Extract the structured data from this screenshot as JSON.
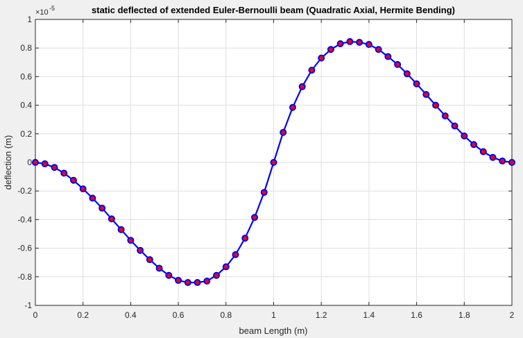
{
  "window": {
    "background": "#f0f0f0"
  },
  "chart_data": {
    "type": "line",
    "title": "static deflected of extended Euler-Bernoulli beam (Quadratic Axial, Hermite Bending)",
    "xlabel": "beam Length (m)",
    "ylabel": "deflection (m)",
    "exponent_label": "×10",
    "exponent_power": "-5",
    "xlim": [
      0,
      2
    ],
    "ylim": [
      -1,
      1
    ],
    "y_multiplier": 1e-05,
    "xticks": [
      "0",
      "0.2",
      "0.4",
      "0.6",
      "0.8",
      "1",
      "1.2",
      "1.4",
      "1.6",
      "1.8",
      "2"
    ],
    "yticks": [
      "-1",
      "-0.8",
      "-0.6",
      "-0.4",
      "-0.2",
      "0",
      "0.2",
      "0.4",
      "0.6",
      "0.8",
      "1"
    ],
    "grid": true,
    "line_color": "#0000ff",
    "marker_face_color": "#ff0000",
    "marker_edge_color": "#0000ff",
    "series": [
      {
        "x": [
          0,
          0.04,
          0.08,
          0.12,
          0.16,
          0.2,
          0.24,
          0.28,
          0.32,
          0.36,
          0.4,
          0.44,
          0.48,
          0.52,
          0.56,
          0.6,
          0.64,
          0.68,
          0.72,
          0.76,
          0.8,
          0.84,
          0.88,
          0.92,
          0.96,
          1.0,
          1.04,
          1.08,
          1.12,
          1.16,
          1.2,
          1.24,
          1.28,
          1.32,
          1.36,
          1.4,
          1.44,
          1.48,
          1.52,
          1.56,
          1.6,
          1.64,
          1.68,
          1.72,
          1.76,
          1.8,
          1.84,
          1.88,
          1.92,
          1.96,
          2.0
        ],
        "y": [
          0,
          -0.01,
          -0.035,
          -0.075,
          -0.125,
          -0.185,
          -0.25,
          -0.32,
          -0.395,
          -0.47,
          -0.545,
          -0.615,
          -0.68,
          -0.74,
          -0.79,
          -0.825,
          -0.84,
          -0.84,
          -0.83,
          -0.79,
          -0.73,
          -0.645,
          -0.53,
          -0.385,
          -0.21,
          0,
          0.21,
          0.385,
          0.53,
          0.645,
          0.73,
          0.79,
          0.83,
          0.845,
          0.84,
          0.825,
          0.79,
          0.74,
          0.685,
          0.62,
          0.55,
          0.475,
          0.4,
          0.325,
          0.255,
          0.185,
          0.125,
          0.075,
          0.035,
          0.01,
          0
        ]
      }
    ]
  }
}
